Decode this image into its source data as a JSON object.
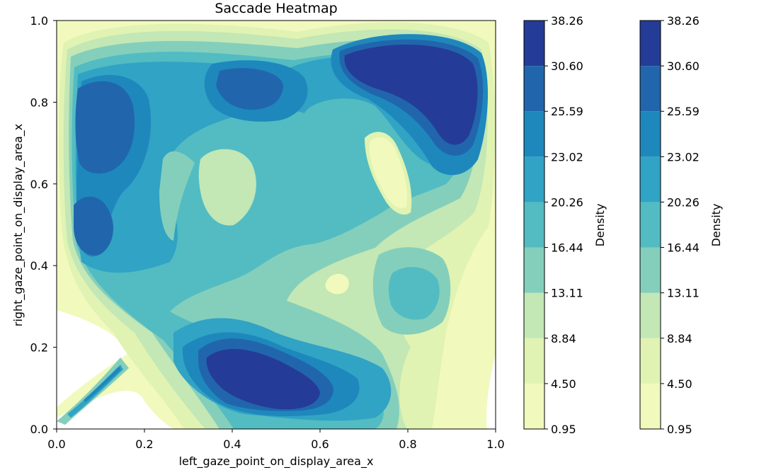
{
  "chart_data": {
    "type": "heatmap",
    "subtype": "filled-contour-kde",
    "title": "Saccade Heatmap",
    "xlabel": "left_gaze_point_on_display_area_x",
    "ylabel": "right_gaze_point_on_display_area_x",
    "xlim": [
      0.0,
      1.0
    ],
    "ylim": [
      0.0,
      1.0
    ],
    "xticks": [
      "0.0",
      "0.2",
      "0.4",
      "0.6",
      "0.8",
      "1.0"
    ],
    "yticks": [
      "0.0",
      "0.2",
      "0.4",
      "0.6",
      "0.8",
      "1.0"
    ],
    "grid": false,
    "colormap": "YlGnBu",
    "levels": [
      0.95,
      4.5,
      8.84,
      13.11,
      16.44,
      20.26,
      23.02,
      25.59,
      30.6,
      38.26
    ],
    "level_labels": [
      "0.95",
      "4.50",
      "8.84",
      "13.11",
      "16.44",
      "20.26",
      "23.02",
      "25.59",
      "30.60",
      "38.26"
    ],
    "level_colors": [
      "#f1f9bd",
      "#e0f3b2",
      "#c3e7b5",
      "#84cfbb",
      "#52bcc2",
      "#31a3c4",
      "#1e88bd",
      "#2166ac",
      "#243c97"
    ],
    "colorbars": [
      {
        "label": "Density"
      },
      {
        "label": "Density"
      }
    ],
    "hotspots": [
      {
        "x": 0.82,
        "y": 0.88,
        "peak_level": 9
      },
      {
        "x": 0.45,
        "y": 0.12,
        "peak_level": 9
      },
      {
        "x": 0.12,
        "y": 0.73,
        "peak_level": 7
      },
      {
        "x": 0.44,
        "y": 0.83,
        "peak_level": 7
      },
      {
        "x": 0.09,
        "y": 0.5,
        "peak_level": 7
      },
      {
        "x": 0.13,
        "y": 0.13,
        "peak_level": 6
      },
      {
        "x": 0.82,
        "y": 0.33,
        "peak_level": 5
      }
    ],
    "minima": [
      {
        "x": 0.73,
        "y": 0.64
      },
      {
        "x": 0.4,
        "y": 0.6
      },
      {
        "x": 0.64,
        "y": 0.36
      }
    ]
  }
}
